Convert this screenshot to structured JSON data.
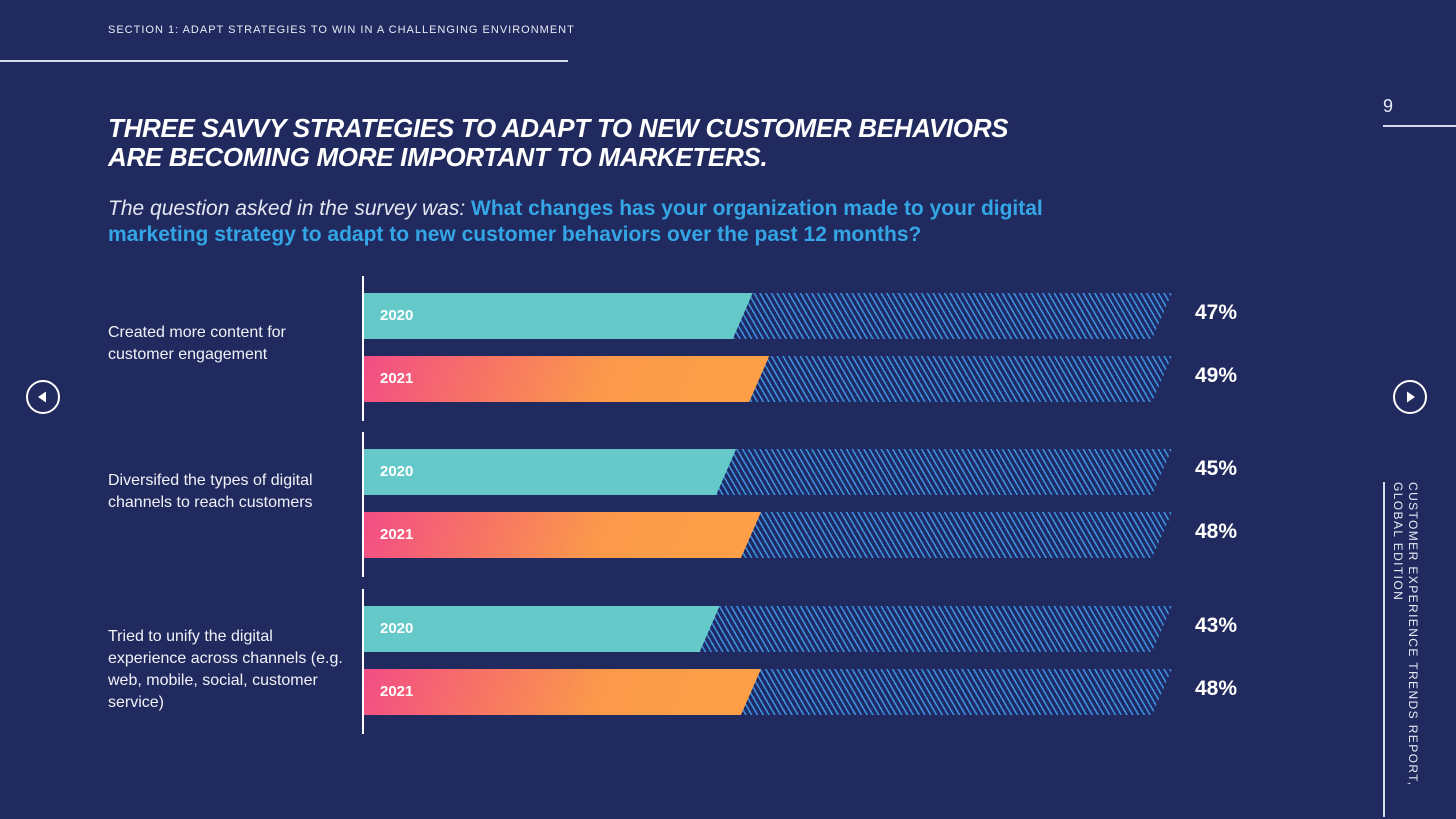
{
  "header": {
    "section": "SECTION 1: ADAPT STRATEGIES TO WIN IN A CHALLENGING ENVIRONMENT",
    "page_number": "9"
  },
  "title": {
    "line1": "THREE SAVVY STRATEGIES TO ADAPT TO NEW CUSTOMER BEHAVIORS",
    "line2": "ARE BECOMING MORE IMPORTANT TO MARKETERS."
  },
  "question": {
    "lead": "The question asked in the survey was: ",
    "text": "What changes has your organization made to your digital marketing strategy to adapt to new customer behaviors over the past 12 months?"
  },
  "side": {
    "line1": "CUSTOMER EXPERIENCE TRENDS REPORT,",
    "line2": "GLOBAL EDITION"
  },
  "nav": {
    "prev_icon": "chevron-left-icon",
    "next_icon": "chevron-right-icon"
  },
  "colors": {
    "background": "#212a5e",
    "series_2020": "#66c9c9",
    "series_2021_start": "#f24d86",
    "series_2021_end": "#fca046",
    "hatch": "#3e8ed8",
    "question_accent": "#34a6e6"
  },
  "chart_data": {
    "type": "bar",
    "orientation": "horizontal",
    "categories": [
      "Created more content for customer engagement",
      "Diversifed the types of digital channels to reach customers",
      "Tried to unify the digital experience across channels (e.g. web, mobile, social, customer service)"
    ],
    "series": [
      {
        "name": "2020",
        "values": [
          47,
          45,
          43
        ],
        "labels": [
          "47%",
          "45%",
          "43%"
        ]
      },
      {
        "name": "2021",
        "values": [
          49,
          48,
          48
        ],
        "labels": [
          "49%",
          "48%",
          "48%"
        ]
      }
    ],
    "xlim": [
      0,
      100
    ],
    "unit": "%"
  }
}
